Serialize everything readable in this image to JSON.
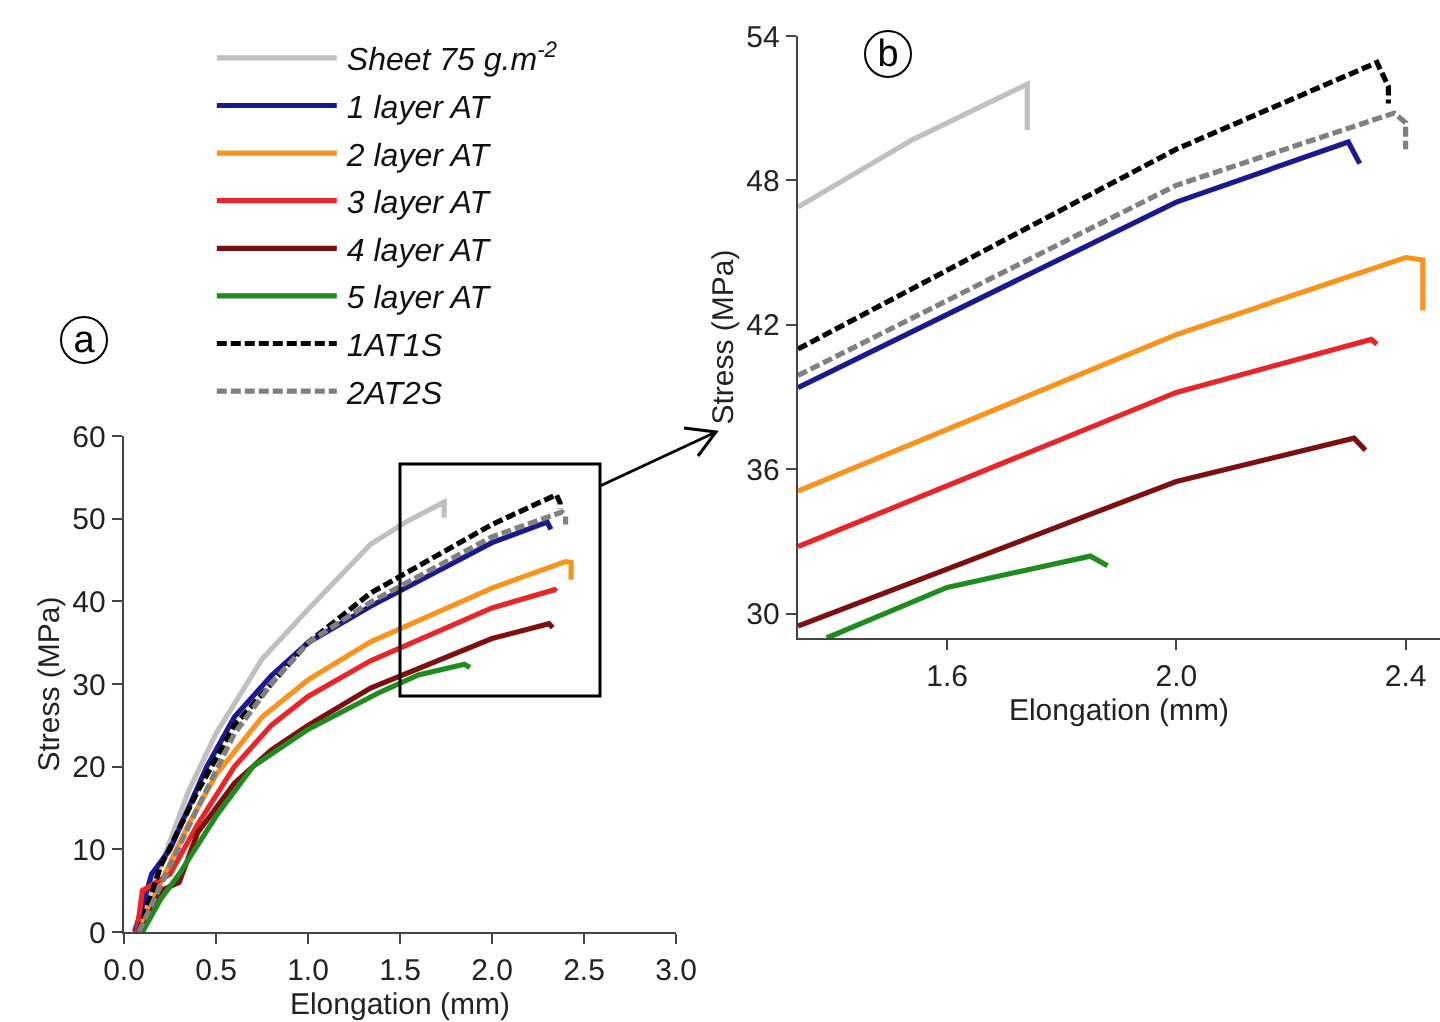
{
  "chart_data": [
    {
      "type": "line",
      "xlabel": "Elongation (mm)",
      "ylabel": "Stress (MPa)",
      "annotations": [
        "a"
      ],
      "xlim": [
        0,
        3
      ],
      "ylim": [
        0,
        60
      ],
      "xticks": [
        {
          "value": 0,
          "label": "0.0"
        },
        0.5,
        {
          "value": 1,
          "label": "1.0"
        },
        1.5,
        {
          "value": 2,
          "label": "2.0"
        },
        2.5,
        {
          "value": 3,
          "label": "3.0"
        }
      ],
      "yticks": [
        0,
        10,
        20,
        30,
        40,
        50,
        60
      ],
      "grid": false,
      "legend": "top",
      "marker": "none",
      "series": [
        {
          "name": "Sheet 75 g.m$^{-2}$",
          "color": "#c0c0c0",
          "line_style": "solid",
          "x": [
            0.05,
            0.2,
            0.35,
            0.5,
            0.75,
            1.0,
            1.34,
            1.54,
            1.74,
            1.74
          ],
          "values": [
            0,
            8,
            17,
            24,
            33,
            39,
            46.9,
            49.7,
            52,
            50.1
          ]
        },
        {
          "name": "1 layer AT",
          "color": "#1a1a8c",
          "line_style": "solid",
          "x": [
            0.06,
            0.15,
            0.25,
            0.35,
            0.45,
            0.6,
            0.8,
            1.0,
            1.34,
            2.0,
            2.3,
            2.32
          ],
          "values": [
            0,
            7,
            10,
            15,
            20,
            26,
            31,
            35,
            39.4,
            47.1,
            49.6,
            48.7
          ]
        },
        {
          "name": "2 layer AT",
          "color": "#f7941d",
          "line_style": "solid",
          "x": [
            0.07,
            0.2,
            0.35,
            0.5,
            0.75,
            1.0,
            1.34,
            2.0,
            2.4,
            2.43,
            2.43
          ],
          "values": [
            0,
            6,
            13,
            19,
            26,
            30.5,
            35.1,
            41.6,
            44.8,
            44.7,
            42.6
          ]
        },
        {
          "name": "3 layer AT",
          "color": "#e8262a",
          "line_style": "solid",
          "x": [
            0.07,
            0.1,
            0.25,
            0.4,
            0.6,
            0.8,
            1.0,
            1.34,
            2.0,
            2.34,
            2.35
          ],
          "values": [
            0,
            5,
            7,
            13,
            20,
            25,
            28.5,
            32.8,
            39.2,
            41.4,
            41.2
          ]
        },
        {
          "name": "4 layer AT",
          "color": "#7a1010",
          "line_style": "solid",
          "x": [
            0.1,
            0.2,
            0.3,
            0.4,
            0.6,
            0.8,
            1.0,
            1.34,
            2.0,
            2.31,
            2.33
          ],
          "values": [
            0,
            5,
            6,
            12,
            18,
            22,
            25,
            29.5,
            35.5,
            37.3,
            36.8
          ]
        },
        {
          "name": "5 layer AT",
          "color": "#1e8c1e",
          "line_style": "solid",
          "x": [
            0.1,
            0.2,
            0.3,
            0.5,
            0.7,
            1.0,
            1.39,
            1.6,
            1.85,
            1.88
          ],
          "values": [
            0,
            4,
            7,
            14,
            20,
            24.5,
            29,
            31.1,
            32.4,
            32
          ]
        },
        {
          "name": "1AT1S",
          "color": "#000000",
          "line_style": "dashed",
          "x": [
            0.08,
            0.2,
            0.4,
            0.6,
            0.8,
            1.0,
            1.34,
            2.0,
            2.35,
            2.37,
            2.37
          ],
          "values": [
            0,
            8,
            17,
            25,
            30,
            35,
            41,
            49.3,
            52.9,
            51.9,
            51.2
          ]
        },
        {
          "name": "2AT2S",
          "color": "#808080",
          "line_style": "dashed",
          "x": [
            0.08,
            0.25,
            0.4,
            0.6,
            0.8,
            1.0,
            1.34,
            2.0,
            2.38,
            2.4,
            2.4
          ],
          "values": [
            0,
            8,
            15,
            24,
            30,
            35,
            39.9,
            47.8,
            50.8,
            50.4,
            49.3
          ]
        }
      ]
    },
    {
      "type": "line",
      "xlabel": "Elongation (mm)",
      "ylabel": "Stress (MPa)",
      "annotations": [
        "b"
      ],
      "xlim": [
        1.34,
        2.46
      ],
      "ylim": [
        29,
        54
      ],
      "xticks": [
        1.6,
        {
          "value": 2,
          "label": "2.0"
        },
        2.4
      ],
      "yticks": [
        30,
        36,
        42,
        48,
        54
      ],
      "grid": false,
      "legend": false,
      "marker": "none",
      "series": [
        {
          "color": "#c0c0c0",
          "line_style": "solid",
          "x": [
            1.34,
            1.54,
            1.74,
            1.74
          ],
          "values": [
            46.9,
            49.7,
            52,
            50.1
          ]
        },
        {
          "color": "#1a1a8c",
          "line_style": "solid",
          "x": [
            1.34,
            2.0,
            2.3,
            2.32
          ],
          "values": [
            39.4,
            47.1,
            49.6,
            48.7
          ]
        },
        {
          "color": "#f7941d",
          "line_style": "solid",
          "x": [
            1.34,
            2.0,
            2.4,
            2.43,
            2.43
          ],
          "values": [
            35.1,
            41.6,
            44.8,
            44.7,
            42.6
          ]
        },
        {
          "color": "#e8262a",
          "line_style": "solid",
          "x": [
            1.34,
            2.0,
            2.34,
            2.35
          ],
          "values": [
            32.8,
            39.2,
            41.4,
            41.2
          ]
        },
        {
          "color": "#7a1010",
          "line_style": "solid",
          "x": [
            1.34,
            2.0,
            2.31,
            2.33
          ],
          "values": [
            29.5,
            35.5,
            37.3,
            36.8
          ]
        },
        {
          "color": "#1e8c1e",
          "line_style": "solid",
          "x": [
            1.39,
            1.6,
            1.85,
            1.88
          ],
          "values": [
            29,
            31.1,
            32.4,
            32
          ]
        },
        {
          "color": "#000000",
          "line_style": "dashed",
          "x": [
            1.34,
            2.0,
            2.35,
            2.37,
            2.37
          ],
          "values": [
            41,
            49.3,
            52.9,
            51.9,
            51.2
          ]
        },
        {
          "color": "#808080",
          "line_style": "dashed",
          "x": [
            1.34,
            2.0,
            2.38,
            2.4,
            2.4
          ],
          "values": [
            39.9,
            47.8,
            50.8,
            50.4,
            49.3
          ]
        }
      ]
    }
  ]
}
